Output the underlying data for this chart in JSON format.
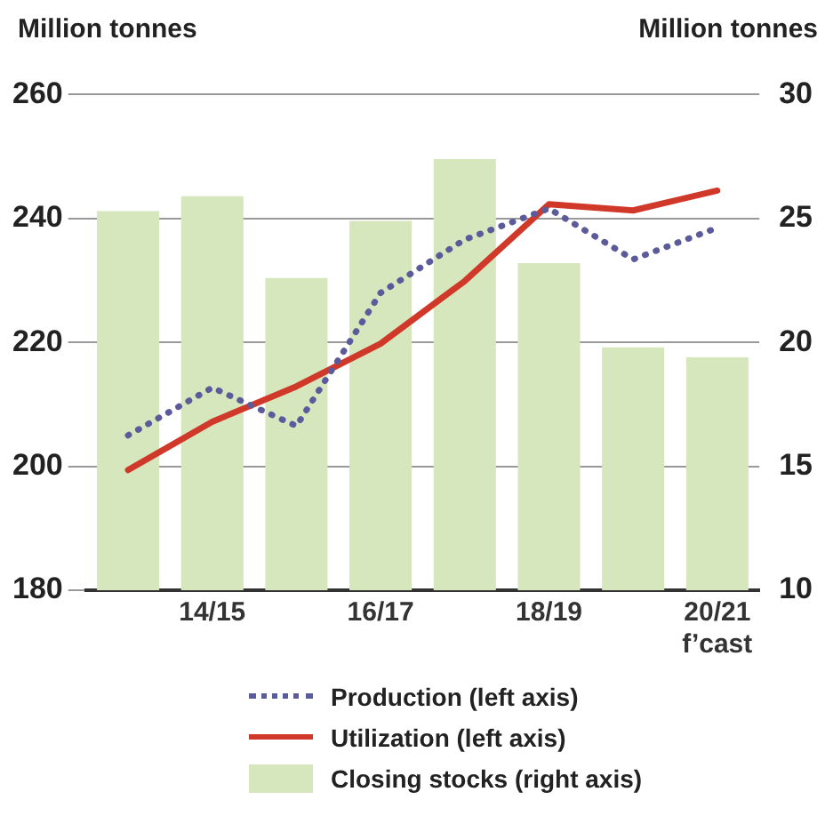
{
  "chart_data": {
    "type": "bar",
    "ylabel": "Million tonnes",
    "y2label": "Million tonnes",
    "categories": [
      null,
      "14/15",
      null,
      "16/17",
      null,
      "18/19",
      null,
      "20/21\nf’cast"
    ],
    "series": [
      {
        "name": "Production (left axis)",
        "type": "line",
        "color": "#5b5b9b",
        "line_style": "dotted",
        "values": [
          205,
          212.7,
          206.5,
          228,
          236.6,
          241.6,
          233.4,
          238.5
        ]
      },
      {
        "name": "Utilization (left axis)",
        "type": "line",
        "color": "#d0392a",
        "line_style": "solid",
        "values": [
          199.4,
          207.2,
          212.9,
          219.8,
          229.9,
          242.3,
          241.3,
          244.5
        ]
      },
      {
        "name": "Closing stocks (right axis)",
        "axis": "y2",
        "color": "#d6e6bd",
        "values": [
          25.3,
          25.9,
          22.6,
          24.9,
          27.4,
          23.2,
          19.8,
          19.4
        ]
      }
    ],
    "ylim": [
      180,
      260
    ],
    "yticks": [
      180,
      200,
      220,
      240,
      260
    ],
    "y2lim": [
      10,
      30
    ],
    "y2ticks": [
      10,
      15,
      20,
      25,
      30
    ],
    "grid": "y",
    "legend": "bottom",
    "marker": "none"
  }
}
